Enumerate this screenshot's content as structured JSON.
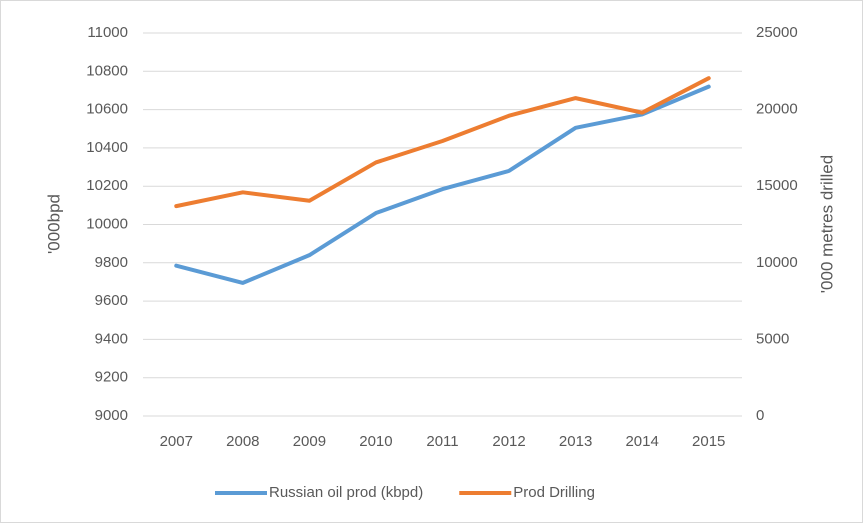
{
  "chart_data": {
    "type": "line",
    "categories": [
      "2007",
      "2008",
      "2009",
      "2010",
      "2011",
      "2012",
      "2013",
      "2014",
      "2015"
    ],
    "series": [
      {
        "name": "Russian oil prod (kbpd)",
        "color": "#5b9bd5",
        "values": [
          9785,
          9695,
          9840,
          10060,
          10185,
          10280,
          10505,
          10575,
          10720
        ]
      },
      {
        "name": "Prod Drilling",
        "color": "#ed7d31",
        "axis": "y2",
        "values": [
          13700,
          14600,
          14050,
          16550,
          17950,
          19600,
          20750,
          19800,
          22050
        ]
      }
    ],
    "ylabel": "'000bpd",
    "y2label": "'000 metres drilled",
    "ylim": [
      9000,
      11000
    ],
    "yticks": [
      9000,
      9200,
      9400,
      9600,
      9800,
      10000,
      10200,
      10400,
      10600,
      10800,
      11000
    ],
    "y2lim": [
      0,
      25000
    ],
    "y2ticks": [
      0,
      5000,
      10000,
      15000,
      20000,
      25000
    ],
    "grid": true,
    "legend": "bottom"
  }
}
